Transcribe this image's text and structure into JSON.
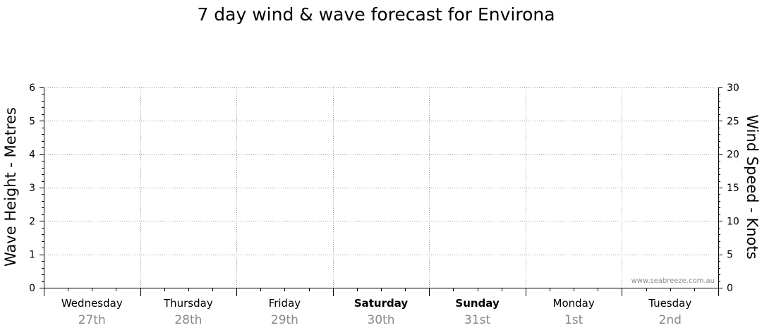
{
  "chart_data": {
    "type": "line",
    "title": "7 day wind & wave forecast for Environa",
    "ylabel_left": "Wave Height - Metres",
    "ylabel_right": "Wind Speed - Knots",
    "ylim_left": [
      0,
      6
    ],
    "ylim_right": [
      0,
      30
    ],
    "yticks_left": [
      "0",
      "1",
      "2",
      "3",
      "4",
      "5",
      "6"
    ],
    "yticks_right": [
      "0",
      "5",
      "10",
      "15",
      "20",
      "25",
      "30"
    ],
    "grid": true,
    "days": [
      {
        "name": "Wednesday",
        "date": "27th",
        "bold": false
      },
      {
        "name": "Thursday",
        "date": "28th",
        "bold": false
      },
      {
        "name": "Friday",
        "date": "29th",
        "bold": false
      },
      {
        "name": "Saturday",
        "date": "30th",
        "bold": true
      },
      {
        "name": "Sunday",
        "date": "31st",
        "bold": true
      },
      {
        "name": "Monday",
        "date": "1st",
        "bold": false
      },
      {
        "name": "Tuesday",
        "date": "2nd",
        "bold": false
      }
    ],
    "series": [],
    "watermark": "www.seabreeze.com.au"
  },
  "colors": {
    "grid": "#9a9a9a",
    "axis": "#000000",
    "date_text": "#888888"
  }
}
